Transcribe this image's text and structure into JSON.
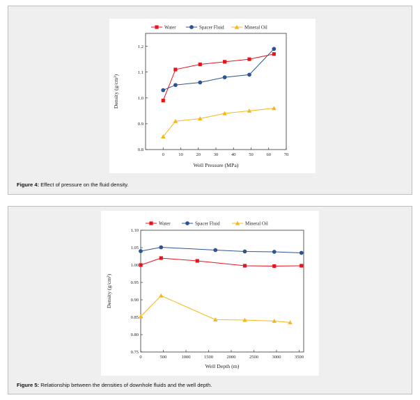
{
  "figures": [
    {
      "caption_label": "Figure 4:",
      "caption_text": " Effect of pressure on the fluid density."
    },
    {
      "caption_label": "Figure 5:",
      "caption_text": " Relationship between the densities of downhole fluids and the well depth."
    }
  ],
  "chart_data": [
    {
      "type": "line",
      "xlabel": "Well Pressure (MPa)",
      "ylabel": "Density (g/cm³)",
      "xlim": [
        -10,
        70
      ],
      "ylim": [
        0.8,
        1.25
      ],
      "xticks": [
        0,
        10,
        20,
        30,
        40,
        50,
        60,
        70
      ],
      "yticks": [
        0.8,
        0.9,
        1.0,
        1.1,
        1.2
      ],
      "ytick_labels": [
        "0.8",
        "0.9",
        "1.0",
        "1.1",
        "1.2"
      ],
      "legend_position": "top",
      "series": [
        {
          "name": "Water",
          "color": "#e8141c",
          "marker": "square",
          "x": [
            0,
            7,
            21,
            35,
            49,
            63
          ],
          "y": [
            0.99,
            1.11,
            1.13,
            1.14,
            1.15,
            1.17
          ]
        },
        {
          "name": "Spacer Fluid",
          "color": "#2b5592",
          "marker": "circle",
          "x": [
            0,
            7,
            21,
            35,
            49,
            63
          ],
          "y": [
            1.03,
            1.05,
            1.06,
            1.08,
            1.09,
            1.19
          ]
        },
        {
          "name": "Mineral Oil",
          "color": "#f7b719",
          "marker": "triangle",
          "x": [
            0,
            7,
            21,
            35,
            49,
            63
          ],
          "y": [
            0.85,
            0.91,
            0.92,
            0.94,
            0.95,
            0.96
          ]
        }
      ]
    },
    {
      "type": "line",
      "xlabel": "Well Depth (m)",
      "ylabel": "Density (g/cm³)",
      "xlim": [
        0,
        3600
      ],
      "ylim": [
        0.75,
        1.1
      ],
      "xticks": [
        0,
        500,
        1000,
        1500,
        2000,
        2500,
        3000,
        3500
      ],
      "yticks": [
        0.75,
        0.8,
        0.85,
        0.9,
        0.95,
        1.0,
        1.05,
        1.1
      ],
      "ytick_labels": [
        "0.75",
        "0.80",
        "0.85",
        "0.90",
        "0.95",
        "1.00",
        "1.05",
        "1.10"
      ],
      "legend_position": "top",
      "series": [
        {
          "name": "Water",
          "color": "#e8141c",
          "marker": "square",
          "x": [
            0,
            450,
            1250,
            2300,
            2950,
            3550
          ],
          "y": [
            1.0,
            1.02,
            1.012,
            0.998,
            0.997,
            0.998
          ]
        },
        {
          "name": "Spacer Fluid",
          "color": "#2b5592",
          "marker": "circle",
          "x": [
            0,
            450,
            1650,
            2300,
            2950,
            3550
          ],
          "y": [
            1.04,
            1.051,
            1.043,
            1.039,
            1.038,
            1.035
          ]
        },
        {
          "name": "Mineral Oil",
          "color": "#f7b719",
          "marker": "triangle",
          "x": [
            0,
            450,
            1650,
            2300,
            2950,
            3300
          ],
          "y": [
            0.852,
            0.912,
            0.843,
            0.842,
            0.839,
            0.835
          ]
        }
      ]
    }
  ]
}
